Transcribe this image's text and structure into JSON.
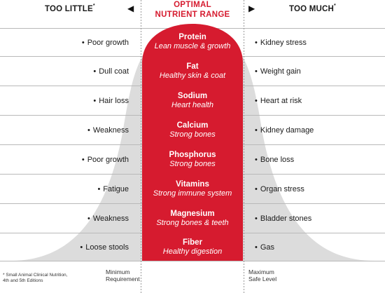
{
  "header": {
    "too_little": "TOO LITTLE",
    "too_much": "TOO MUCH",
    "asterisk": "*",
    "left_arrow": "◀",
    "right_arrow": "▶",
    "optimal_line1": "OPTIMAL",
    "optimal_line2": "NUTRIENT RANGE"
  },
  "bullet": "•",
  "rows": [
    {
      "deficiency": "Poor growth",
      "nutrient": "Protein",
      "benefit": "Lean muscle & growth",
      "excess": "Kidney stress"
    },
    {
      "deficiency": "Dull coat",
      "nutrient": "Fat",
      "benefit": "Healthy skin & coat",
      "excess": "Weight gain"
    },
    {
      "deficiency": "Hair loss",
      "nutrient": "Sodium",
      "benefit": "Heart health",
      "excess": "Heart at risk"
    },
    {
      "deficiency": "Weakness",
      "nutrient": "Calcium",
      "benefit": "Strong bones",
      "excess": "Kidney damage"
    },
    {
      "deficiency": "Poor growth",
      "nutrient": "Phosphorus",
      "benefit": "Strong bones",
      "excess": "Bone loss"
    },
    {
      "deficiency": "Fatigue",
      "nutrient": "Vitamins",
      "benefit": "Strong immune system",
      "excess": "Organ stress"
    },
    {
      "deficiency": "Weakness",
      "nutrient": "Magnesium",
      "benefit": "Strong bones & teeth",
      "excess": "Bladder stones"
    },
    {
      "deficiency": "Loose stools",
      "nutrient": "Fiber",
      "benefit": "Healthy digestion",
      "excess": "Gas"
    }
  ],
  "footer": {
    "min_line1": "Minimum",
    "min_line2": "Requirement",
    "max_line1": "Maximum",
    "max_line2": "Safe Level",
    "footnote_line1": "* Small Animal Clinical Nutrition,",
    "footnote_line2": "4th and 5th Editions"
  },
  "colors": {
    "accent_red": "#d61b2f",
    "curve_gray": "#dcdcdc",
    "grid_line": "#b9b9b9"
  }
}
